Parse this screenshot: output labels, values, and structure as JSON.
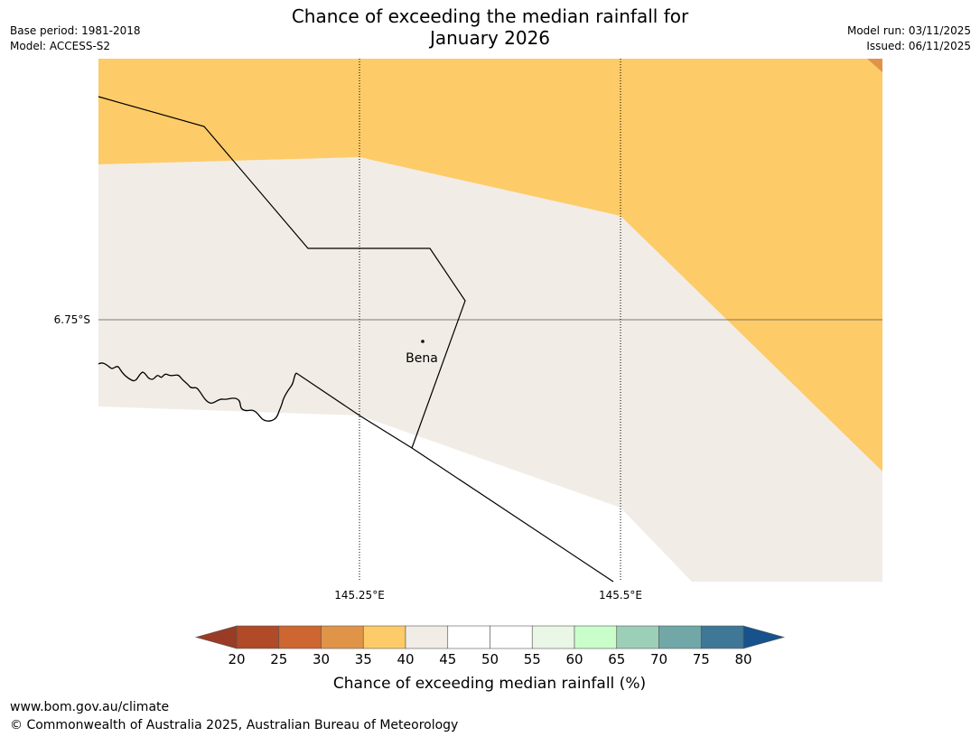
{
  "title": {
    "line1": "Chance of exceeding the median rainfall for",
    "line2": "January 2026"
  },
  "meta": {
    "base_period": "Base period: 1981-2018",
    "model": "Model: ACCESS-S2",
    "model_run": "Model run: 03/11/2025",
    "issued": "Issued: 06/11/2025"
  },
  "map": {
    "place_label": "Bena",
    "lat_label": "6.75°S",
    "lon_labels": [
      "145.25°E",
      "145.5°E"
    ],
    "category_colors": {
      "30-35": "#e09448",
      "35-40": "#fdcb68",
      "40-45": "#f1ece6",
      "45-55": "#ffffff"
    }
  },
  "colorbar": {
    "label": "Chance of exceeding median rainfall (%)",
    "ticks": [
      "20",
      "25",
      "30",
      "35",
      "40",
      "45",
      "50",
      "55",
      "60",
      "65",
      "70",
      "75",
      "80"
    ],
    "low_extend_color": "#993b25",
    "high_extend_color": "#17528c",
    "colors": [
      "#b04a27",
      "#cd6631",
      "#e09448",
      "#fdcb68",
      "#f1ece6",
      "#ffffff",
      "#ffffff",
      "#eaf6e6",
      "#c9fdc9",
      "#9ccfb7",
      "#71a8a7",
      "#3f7796"
    ]
  },
  "footer": {
    "url": "www.bom.gov.au/climate",
    "copyright": "© Commonwealth of Australia 2025, Australian Bureau of Meteorology"
  }
}
